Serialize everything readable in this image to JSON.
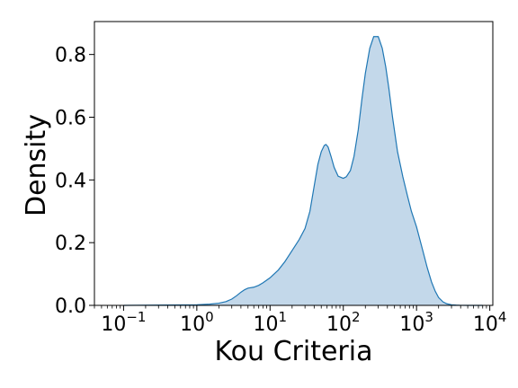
{
  "chart_data": {
    "type": "area",
    "title": "",
    "xlabel": "Kou Criteria",
    "ylabel": "Density",
    "x_scale": "log",
    "xlim": [
      0.04,
      11000
    ],
    "ylim": [
      0,
      0.905
    ],
    "grid": false,
    "legend": "none",
    "colors": {
      "fill": "#c3d8ea",
      "line": "#1f77b4"
    },
    "x_ticks": [
      {
        "base": "10",
        "exp": "−1",
        "value": 0.1
      },
      {
        "base": "10",
        "exp": "0",
        "value": 1
      },
      {
        "base": "10",
        "exp": "1",
        "value": 10
      },
      {
        "base": "10",
        "exp": "2",
        "value": 100
      },
      {
        "base": "10",
        "exp": "3",
        "value": 1000
      },
      {
        "base": "10",
        "exp": "4",
        "value": 10000
      }
    ],
    "y_ticks": [
      {
        "label": "0.0",
        "value": 0.0
      },
      {
        "label": "0.2",
        "value": 0.2
      },
      {
        "label": "0.4",
        "value": 0.4
      },
      {
        "label": "0.6",
        "value": 0.6
      },
      {
        "label": "0.8",
        "value": 0.8
      }
    ],
    "series": [
      {
        "x": [
          0.1,
          1,
          1.5,
          2,
          2.5,
          3,
          3.5,
          4,
          4.5,
          5,
          6,
          7,
          8,
          10,
          13,
          16,
          20,
          25,
          30,
          35,
          40,
          45,
          50,
          55,
          58,
          62,
          68,
          75,
          85,
          100,
          110,
          125,
          140,
          160,
          180,
          200,
          230,
          260,
          300,
          340,
          380,
          420,
          470,
          550,
          650,
          750,
          850,
          1000,
          1200,
          1400,
          1600,
          1800,
          2000,
          2300,
          2600,
          3000,
          3500,
          4000,
          5000,
          6000,
          8000
        ],
        "y": [
          0,
          0.002,
          0.004,
          0.007,
          0.012,
          0.02,
          0.031,
          0.042,
          0.05,
          0.055,
          0.058,
          0.064,
          0.072,
          0.088,
          0.113,
          0.14,
          0.175,
          0.21,
          0.245,
          0.3,
          0.38,
          0.45,
          0.49,
          0.51,
          0.513,
          0.505,
          0.475,
          0.44,
          0.412,
          0.405,
          0.41,
          0.43,
          0.475,
          0.56,
          0.66,
          0.74,
          0.82,
          0.857,
          0.857,
          0.82,
          0.76,
          0.69,
          0.6,
          0.49,
          0.41,
          0.35,
          0.3,
          0.25,
          0.18,
          0.12,
          0.075,
          0.045,
          0.025,
          0.011,
          0.005,
          0.002,
          0.0007,
          0.0002,
          5e-05,
          1e-05,
          0
        ]
      }
    ]
  }
}
